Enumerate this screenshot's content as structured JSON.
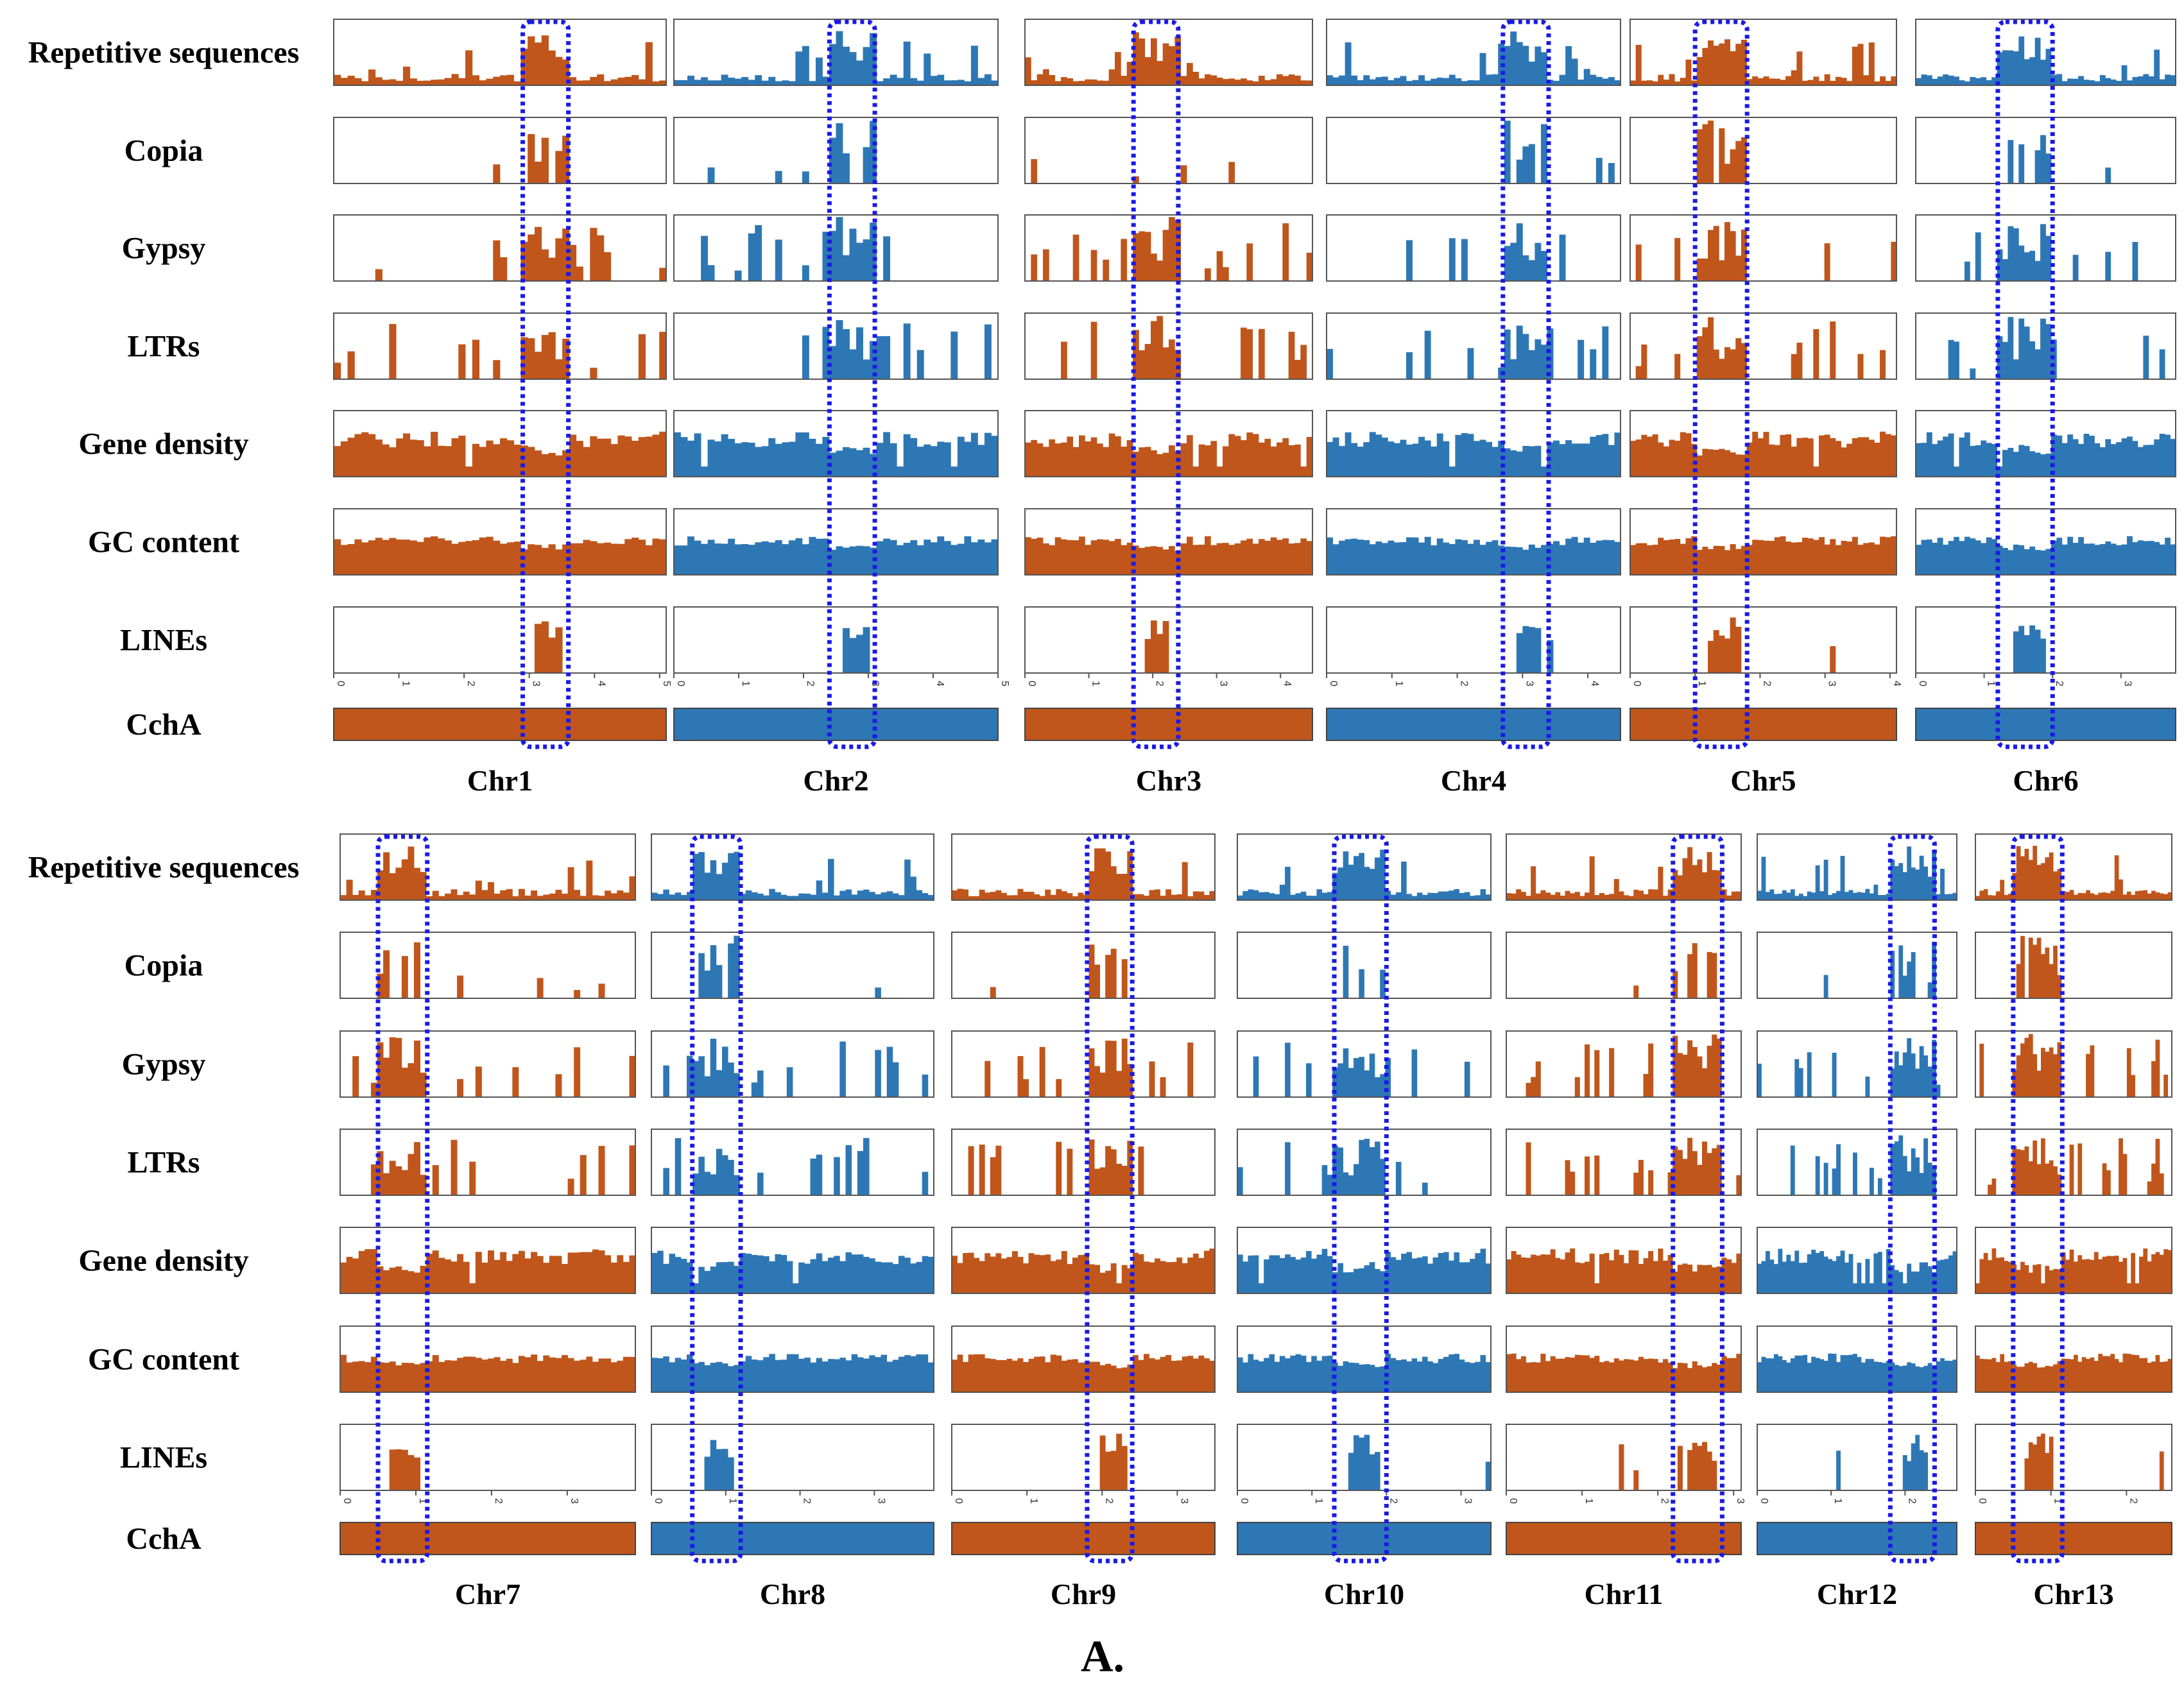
{
  "figure_label": "A.",
  "chart_data": {
    "type": "bar",
    "track_names": [
      "Repetitive sequences",
      "Copia",
      "Gypsy",
      "LTRs",
      "Gene density",
      "GC content",
      "LINEs",
      "CchA"
    ],
    "colors": {
      "orange": "#C0561B",
      "blue": "#2E77B5",
      "highlight": "#1A1AE6"
    },
    "scale_unit": "Mb",
    "rows": [
      {
        "chromosomes": [
          {
            "name": "Chr1",
            "color": "orange",
            "length": 5.1,
            "ticks": [
              0,
              1,
              2,
              3,
              4,
              5
            ],
            "highlight": [
              2.9,
              3.6
            ]
          },
          {
            "name": "Chr2",
            "color": "blue",
            "length": 5.0,
            "ticks": [
              0,
              1,
              2,
              3,
              4,
              5
            ],
            "highlight": [
              2.4,
              3.1
            ]
          },
          {
            "name": "Chr3",
            "color": "orange",
            "length": 4.5,
            "ticks": [
              0,
              1,
              2,
              3,
              4
            ],
            "highlight": [
              1.7,
              2.4
            ]
          },
          {
            "name": "Chr4",
            "color": "blue",
            "length": 4.5,
            "ticks": [
              0,
              1,
              2,
              3,
              4
            ],
            "highlight": [
              2.7,
              3.4
            ]
          },
          {
            "name": "Chr5",
            "color": "orange",
            "length": 4.1,
            "ticks": [
              0,
              1,
              2,
              3,
              4
            ],
            "highlight": [
              1.0,
              1.8
            ]
          },
          {
            "name": "Chr6",
            "color": "blue",
            "length": 3.8,
            "ticks": [
              0,
              1,
              2,
              3
            ],
            "highlight": [
              1.2,
              2.0
            ]
          }
        ]
      },
      {
        "chromosomes": [
          {
            "name": "Chr7",
            "color": "orange",
            "length": 3.9,
            "ticks": [
              0,
              1,
              2,
              3
            ],
            "highlight": [
              0.5,
              1.15
            ]
          },
          {
            "name": "Chr8",
            "color": "blue",
            "length": 3.8,
            "ticks": [
              0,
              1,
              2,
              3
            ],
            "highlight": [
              0.55,
              1.2
            ]
          },
          {
            "name": "Chr9",
            "color": "orange",
            "length": 3.5,
            "ticks": [
              0,
              1,
              2,
              3
            ],
            "highlight": [
              1.8,
              2.4
            ]
          },
          {
            "name": "Chr10",
            "color": "blue",
            "length": 3.4,
            "ticks": [
              0,
              1,
              2,
              3
            ],
            "highlight": [
              1.3,
              2.0
            ]
          },
          {
            "name": "Chr11",
            "color": "orange",
            "length": 3.1,
            "ticks": [
              0,
              1,
              2,
              3
            ],
            "highlight": [
              2.2,
              2.85
            ]
          },
          {
            "name": "Chr12",
            "color": "blue",
            "length": 2.7,
            "ticks": [
              0,
              1,
              2
            ],
            "highlight": [
              1.8,
              2.4
            ]
          },
          {
            "name": "Chr13",
            "color": "orange",
            "length": 2.6,
            "ticks": [
              0,
              1,
              2
            ],
            "highlight": [
              0.5,
              1.15
            ]
          }
        ]
      }
    ]
  }
}
